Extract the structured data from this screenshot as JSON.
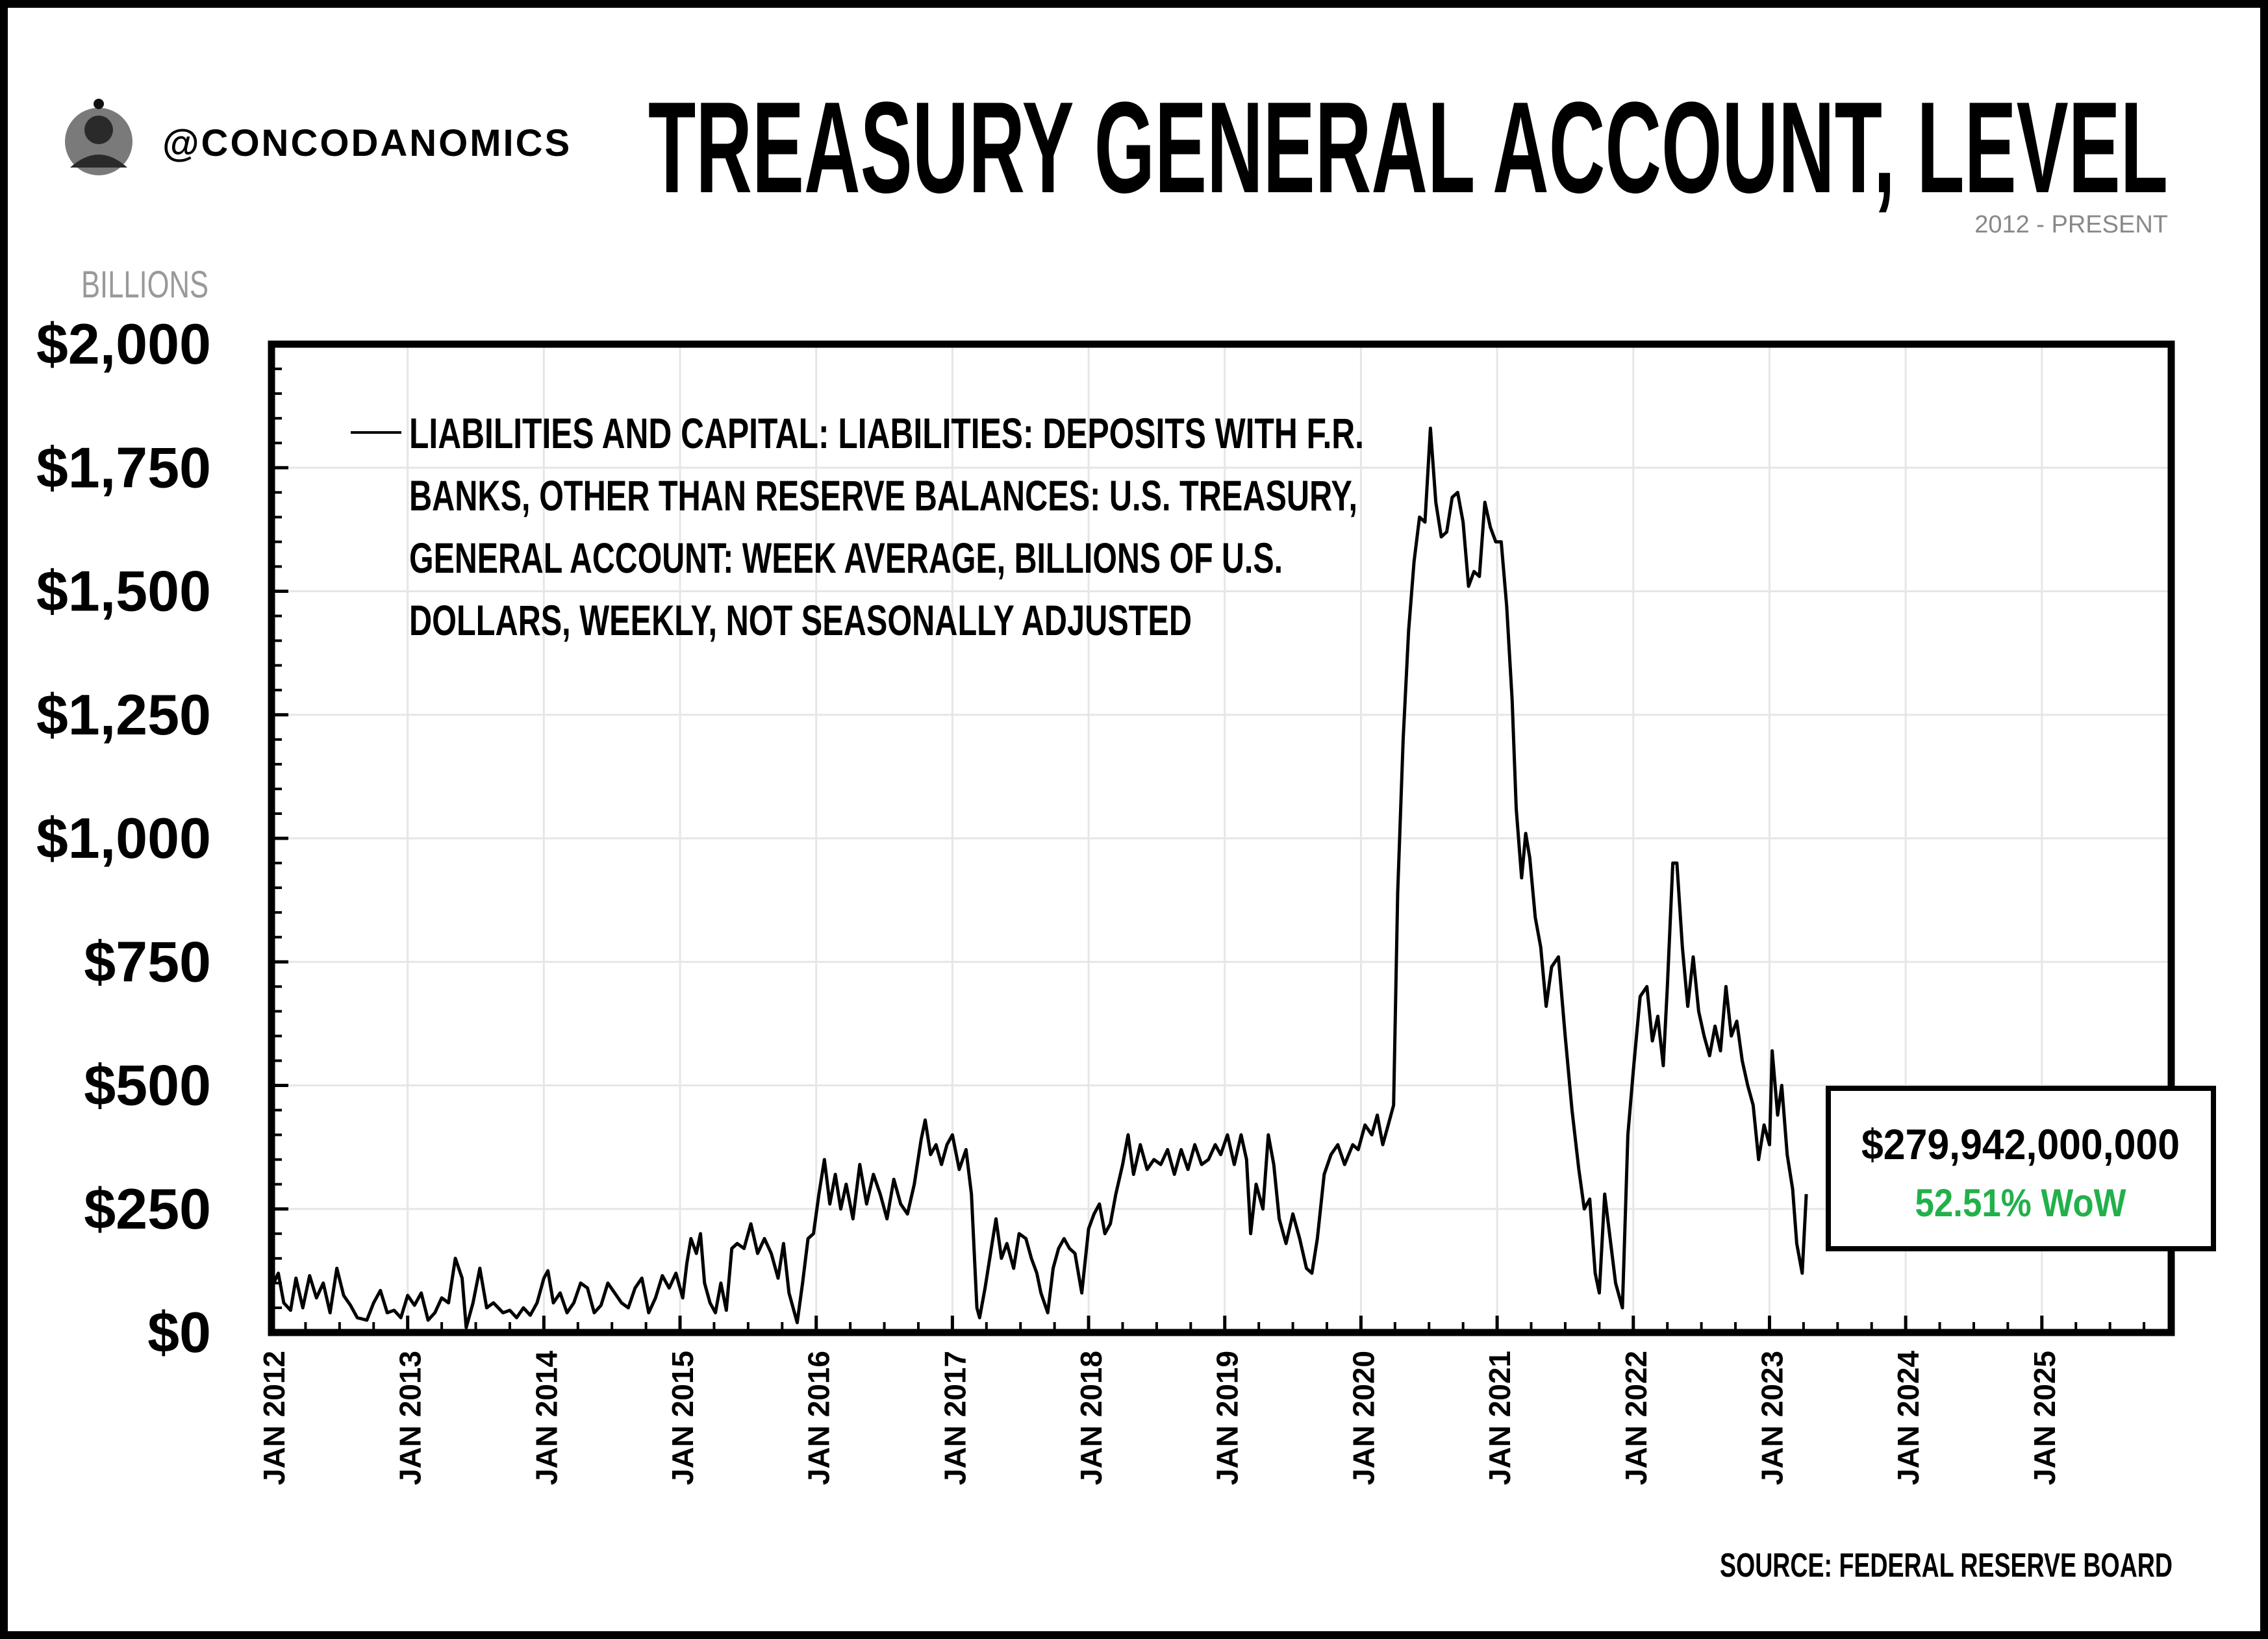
{
  "header": {
    "handle": "@CONCODANOMICS",
    "title": "TREASURY GENERAL ACCOUNT, LEVEL",
    "subtitle": "2012 - PRESENT",
    "avatar_label": "author avatar"
  },
  "footer": {
    "source": "SOURCE: FEDERAL RESERVE BOARD"
  },
  "callout": {
    "value": "$279,942,000,000",
    "change": "52.51% WoW",
    "change_color": "#22b04b"
  },
  "colors": {
    "line": "#000000",
    "grid": "#e6e6e6",
    "axis": "#000000",
    "units": "#999999"
  },
  "chart_data": {
    "type": "line",
    "title": "TREASURY GENERAL ACCOUNT, LEVEL",
    "subtitle": "2012 - PRESENT",
    "units_label": "BILLIONS",
    "xlabel": "",
    "ylabel": "BILLIONS",
    "ylim": [
      0,
      2000
    ],
    "xlim": [
      2012.0,
      2025.95
    ],
    "yticks": [
      0,
      250,
      500,
      750,
      1000,
      1250,
      1500,
      1750,
      2000
    ],
    "ytick_labels": [
      "$0",
      "$250",
      "$500",
      "$750",
      "$1,000",
      "$1,250",
      "$1,500",
      "$1,750",
      "$2,000"
    ],
    "xticks": [
      2012,
      2013,
      2014,
      2015,
      2016,
      2017,
      2018,
      2019,
      2020,
      2021,
      2022,
      2023,
      2024,
      2025
    ],
    "xtick_labels": [
      "JAN 2012",
      "JAN 2013",
      "JAN 2014",
      "JAN 2015",
      "JAN 2016",
      "JAN 2017",
      "JAN 2018",
      "JAN 2019",
      "JAN 2020",
      "JAN 2021",
      "JAN 2022",
      "JAN 2023",
      "JAN 2024",
      "JAN 2025"
    ],
    "grid": true,
    "legend_position": "top-left",
    "series": [
      {
        "name": "LIABILITIES AND CAPITAL: LIABILITIES: DEPOSITS WITH F.R. BANKS, OTHER THAN RESERVE BALANCES: U.S. TREASURY, GENERAL ACCOUNT: WEEK AVERAGE, BILLIONS OF U.S. DOLLARS, WEEKLY, NOT SEASONALLY ADJUSTED",
        "legend_lines": [
          "LIABILITIES AND CAPITAL: LIABILITIES: DEPOSITS WITH F.R.",
          "BANKS, OTHER THAN RESERVE BALANCES: U.S. TREASURY,",
          "GENERAL ACCOUNT: WEEK AVERAGE, BILLIONS OF U.S.",
          "DOLLARS, WEEKLY, NOT SEASONALLY ADJUSTED"
        ],
        "points": [
          [
            2012.0,
            90
          ],
          [
            2012.05,
            120
          ],
          [
            2012.09,
            60
          ],
          [
            2012.14,
            45
          ],
          [
            2012.18,
            110
          ],
          [
            2012.23,
            50
          ],
          [
            2012.28,
            115
          ],
          [
            2012.33,
            70
          ],
          [
            2012.38,
            100
          ],
          [
            2012.43,
            40
          ],
          [
            2012.48,
            130
          ],
          [
            2012.53,
            75
          ],
          [
            2012.58,
            55
          ],
          [
            2012.63,
            30
          ],
          [
            2012.7,
            25
          ],
          [
            2012.75,
            60
          ],
          [
            2012.8,
            85
          ],
          [
            2012.85,
            40
          ],
          [
            2012.9,
            45
          ],
          [
            2012.95,
            30
          ],
          [
            2013.0,
            75
          ],
          [
            2013.05,
            55
          ],
          [
            2013.1,
            80
          ],
          [
            2013.15,
            25
          ],
          [
            2013.2,
            40
          ],
          [
            2013.25,
            70
          ],
          [
            2013.3,
            60
          ],
          [
            2013.35,
            150
          ],
          [
            2013.4,
            110
          ],
          [
            2013.43,
            10
          ],
          [
            2013.48,
            60
          ],
          [
            2013.53,
            130
          ],
          [
            2013.58,
            50
          ],
          [
            2013.63,
            60
          ],
          [
            2013.7,
            40
          ],
          [
            2013.75,
            45
          ],
          [
            2013.8,
            30
          ],
          [
            2013.85,
            50
          ],
          [
            2013.9,
            35
          ],
          [
            2013.95,
            60
          ],
          [
            2014.0,
            110
          ],
          [
            2014.03,
            125
          ],
          [
            2014.07,
            60
          ],
          [
            2014.12,
            80
          ],
          [
            2014.17,
            40
          ],
          [
            2014.22,
            60
          ],
          [
            2014.27,
            100
          ],
          [
            2014.32,
            90
          ],
          [
            2014.37,
            40
          ],
          [
            2014.42,
            55
          ],
          [
            2014.47,
            100
          ],
          [
            2014.52,
            80
          ],
          [
            2014.57,
            60
          ],
          [
            2014.62,
            50
          ],
          [
            2014.67,
            90
          ],
          [
            2014.72,
            110
          ],
          [
            2014.77,
            40
          ],
          [
            2014.82,
            70
          ],
          [
            2014.87,
            115
          ],
          [
            2014.92,
            90
          ],
          [
            2014.97,
            120
          ],
          [
            2015.02,
            70
          ],
          [
            2015.05,
            140
          ],
          [
            2015.08,
            190
          ],
          [
            2015.12,
            160
          ],
          [
            2015.15,
            200
          ],
          [
            2015.18,
            100
          ],
          [
            2015.22,
            60
          ],
          [
            2015.26,
            40
          ],
          [
            2015.3,
            100
          ],
          [
            2015.34,
            45
          ],
          [
            2015.38,
            170
          ],
          [
            2015.42,
            180
          ],
          [
            2015.47,
            170
          ],
          [
            2015.52,
            220
          ],
          [
            2015.57,
            160
          ],
          [
            2015.62,
            190
          ],
          [
            2015.67,
            160
          ],
          [
            2015.72,
            110
          ],
          [
            2015.76,
            180
          ],
          [
            2015.8,
            80
          ],
          [
            2015.86,
            20
          ],
          [
            2015.9,
            100
          ],
          [
            2015.94,
            190
          ],
          [
            2015.98,
            200
          ],
          [
            2016.02,
            280
          ],
          [
            2016.06,
            350
          ],
          [
            2016.1,
            260
          ],
          [
            2016.14,
            320
          ],
          [
            2016.18,
            250
          ],
          [
            2016.22,
            300
          ],
          [
            2016.27,
            230
          ],
          [
            2016.32,
            340
          ],
          [
            2016.37,
            260
          ],
          [
            2016.42,
            320
          ],
          [
            2016.47,
            280
          ],
          [
            2016.52,
            230
          ],
          [
            2016.57,
            310
          ],
          [
            2016.62,
            260
          ],
          [
            2016.67,
            240
          ],
          [
            2016.72,
            300
          ],
          [
            2016.77,
            390
          ],
          [
            2016.8,
            430
          ],
          [
            2016.84,
            360
          ],
          [
            2016.88,
            380
          ],
          [
            2016.92,
            340
          ],
          [
            2016.96,
            380
          ],
          [
            2017.0,
            400
          ],
          [
            2017.05,
            330
          ],
          [
            2017.1,
            370
          ],
          [
            2017.14,
            280
          ],
          [
            2017.18,
            50
          ],
          [
            2017.2,
            30
          ],
          [
            2017.24,
            90
          ],
          [
            2017.28,
            160
          ],
          [
            2017.32,
            230
          ],
          [
            2017.36,
            150
          ],
          [
            2017.4,
            180
          ],
          [
            2017.45,
            130
          ],
          [
            2017.49,
            200
          ],
          [
            2017.54,
            190
          ],
          [
            2017.58,
            150
          ],
          [
            2017.62,
            120
          ],
          [
            2017.65,
            80
          ],
          [
            2017.7,
            40
          ],
          [
            2017.74,
            130
          ],
          [
            2017.78,
            170
          ],
          [
            2017.82,
            190
          ],
          [
            2017.86,
            170
          ],
          [
            2017.9,
            160
          ],
          [
            2017.95,
            80
          ],
          [
            2018.0,
            210
          ],
          [
            2018.04,
            240
          ],
          [
            2018.08,
            260
          ],
          [
            2018.12,
            200
          ],
          [
            2018.16,
            220
          ],
          [
            2018.2,
            280
          ],
          [
            2018.25,
            340
          ],
          [
            2018.29,
            400
          ],
          [
            2018.33,
            320
          ],
          [
            2018.38,
            380
          ],
          [
            2018.43,
            330
          ],
          [
            2018.48,
            350
          ],
          [
            2018.53,
            340
          ],
          [
            2018.58,
            370
          ],
          [
            2018.63,
            320
          ],
          [
            2018.68,
            370
          ],
          [
            2018.73,
            330
          ],
          [
            2018.78,
            380
          ],
          [
            2018.83,
            340
          ],
          [
            2018.88,
            350
          ],
          [
            2018.93,
            380
          ],
          [
            2018.97,
            360
          ],
          [
            2019.02,
            400
          ],
          [
            2019.07,
            340
          ],
          [
            2019.12,
            400
          ],
          [
            2019.16,
            350
          ],
          [
            2019.19,
            200
          ],
          [
            2019.23,
            300
          ],
          [
            2019.28,
            250
          ],
          [
            2019.32,
            400
          ],
          [
            2019.36,
            340
          ],
          [
            2019.4,
            230
          ],
          [
            2019.45,
            180
          ],
          [
            2019.5,
            240
          ],
          [
            2019.55,
            190
          ],
          [
            2019.6,
            130
          ],
          [
            2019.64,
            120
          ],
          [
            2019.68,
            190
          ],
          [
            2019.73,
            320
          ],
          [
            2019.78,
            360
          ],
          [
            2019.83,
            380
          ],
          [
            2019.88,
            340
          ],
          [
            2019.94,
            380
          ],
          [
            2019.98,
            370
          ],
          [
            2020.03,
            420
          ],
          [
            2020.08,
            400
          ],
          [
            2020.12,
            440
          ],
          [
            2020.16,
            380
          ],
          [
            2020.2,
            420
          ],
          [
            2020.24,
            460
          ],
          [
            2020.27,
            890
          ],
          [
            2020.31,
            1200
          ],
          [
            2020.35,
            1420
          ],
          [
            2020.39,
            1560
          ],
          [
            2020.43,
            1650
          ],
          [
            2020.47,
            1640
          ],
          [
            2020.51,
            1830
          ],
          [
            2020.55,
            1680
          ],
          [
            2020.59,
            1610
          ],
          [
            2020.63,
            1620
          ],
          [
            2020.67,
            1690
          ],
          [
            2020.71,
            1700
          ],
          [
            2020.75,
            1640
          ],
          [
            2020.79,
            1510
          ],
          [
            2020.83,
            1540
          ],
          [
            2020.87,
            1530
          ],
          [
            2020.91,
            1680
          ],
          [
            2020.95,
            1630
          ],
          [
            2020.99,
            1600
          ],
          [
            2021.03,
            1600
          ],
          [
            2021.07,
            1470
          ],
          [
            2021.11,
            1280
          ],
          [
            2021.14,
            1060
          ],
          [
            2021.18,
            920
          ],
          [
            2021.21,
            1010
          ],
          [
            2021.24,
            960
          ],
          [
            2021.28,
            840
          ],
          [
            2021.32,
            780
          ],
          [
            2021.36,
            660
          ],
          [
            2021.4,
            740
          ],
          [
            2021.45,
            760
          ],
          [
            2021.5,
            600
          ],
          [
            2021.55,
            450
          ],
          [
            2021.6,
            330
          ],
          [
            2021.64,
            250
          ],
          [
            2021.68,
            270
          ],
          [
            2021.72,
            120
          ],
          [
            2021.75,
            80
          ],
          [
            2021.79,
            280
          ],
          [
            2021.83,
            190
          ],
          [
            2021.87,
            100
          ],
          [
            2021.92,
            50
          ],
          [
            2021.96,
            400
          ],
          [
            2022.0,
            530
          ],
          [
            2022.05,
            680
          ],
          [
            2022.1,
            700
          ],
          [
            2022.14,
            590
          ],
          [
            2022.18,
            640
          ],
          [
            2022.22,
            540
          ],
          [
            2022.25,
            700
          ],
          [
            2022.29,
            950
          ],
          [
            2022.32,
            950
          ],
          [
            2022.36,
            780
          ],
          [
            2022.4,
            660
          ],
          [
            2022.44,
            760
          ],
          [
            2022.48,
            650
          ],
          [
            2022.52,
            600
          ],
          [
            2022.56,
            560
          ],
          [
            2022.6,
            620
          ],
          [
            2022.64,
            570
          ],
          [
            2022.68,
            700
          ],
          [
            2022.72,
            600
          ],
          [
            2022.76,
            630
          ],
          [
            2022.8,
            550
          ],
          [
            2022.84,
            500
          ],
          [
            2022.88,
            460
          ],
          [
            2022.92,
            350
          ],
          [
            2022.96,
            420
          ],
          [
            2023.0,
            380
          ],
          [
            2023.02,
            570
          ],
          [
            2023.06,
            440
          ],
          [
            2023.09,
            500
          ],
          [
            2023.13,
            360
          ],
          [
            2023.17,
            290
          ],
          [
            2023.2,
            180
          ],
          [
            2023.24,
            120
          ],
          [
            2023.27,
            280
          ]
        ]
      }
    ]
  }
}
